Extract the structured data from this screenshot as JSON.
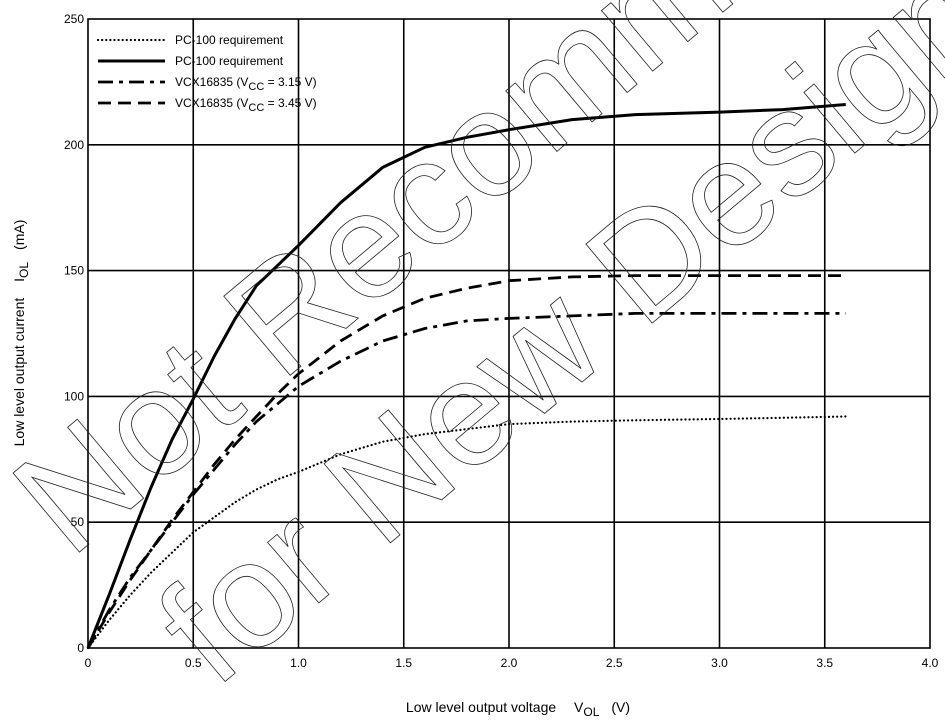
{
  "chart_data": {
    "type": "line",
    "xlim": [
      0,
      4.0
    ],
    "ylim": [
      0,
      250
    ],
    "x_ticks": [
      "0",
      "0.5",
      "1.0",
      "1.5",
      "2.0",
      "2.5",
      "3.0",
      "3.5",
      "4.0"
    ],
    "y_ticks": [
      "0",
      "50",
      "100",
      "150",
      "200",
      "250"
    ],
    "grid": true,
    "legend_position": "top-left",
    "xlabel": {
      "main": "Low level output voltage",
      "symbol": "V",
      "subscript": "OL",
      "unit": "(V)"
    },
    "ylabel": {
      "main": "Low level output current",
      "symbol": "I",
      "subscript": "OL",
      "unit": "(mA)"
    },
    "series": [
      {
        "legend": {
          "pre": "PC-100 requirement",
          "sub": "",
          "post": ""
        },
        "style": "dotted",
        "x": [
          0,
          0.1,
          0.2,
          0.3,
          0.4,
          0.5,
          0.6,
          0.7,
          0.8,
          0.9,
          1.0,
          1.2,
          1.4,
          1.6,
          1.8,
          2.0,
          2.3,
          2.6,
          3.0,
          3.3,
          3.6
        ],
        "y": [
          0,
          11,
          21,
          30,
          38,
          46,
          52,
          58,
          63,
          67,
          70,
          77,
          82,
          85,
          87,
          89,
          90,
          90.5,
          91,
          91.5,
          92
        ]
      },
      {
        "legend": {
          "pre": "PC-100 requirement",
          "sub": "",
          "post": ""
        },
        "style": "solid",
        "x": [
          0,
          0.1,
          0.2,
          0.3,
          0.4,
          0.5,
          0.6,
          0.7,
          0.8,
          0.9,
          1.0,
          1.2,
          1.4,
          1.6,
          1.8,
          2.0,
          2.3,
          2.6,
          3.0,
          3.3,
          3.6
        ],
        "y": [
          0,
          21,
          43,
          64,
          83,
          99,
          116,
          131,
          144,
          152,
          160,
          177,
          191,
          199,
          203,
          206,
          210,
          212,
          213,
          214,
          216
        ]
      },
      {
        "legend": {
          "pre": "VCX16835 (V",
          "sub": "CC",
          "post": " = 3.15 V)"
        },
        "style": "dashdot",
        "x": [
          0,
          0.1,
          0.2,
          0.3,
          0.4,
          0.5,
          0.6,
          0.7,
          0.8,
          0.9,
          1.0,
          1.2,
          1.4,
          1.6,
          1.8,
          2.0,
          2.3,
          2.6,
          3.0,
          3.3,
          3.6
        ],
        "y": [
          0,
          15,
          28,
          39,
          50,
          61,
          71,
          81,
          90,
          97,
          104,
          114,
          122,
          127,
          130,
          131,
          132,
          133,
          133,
          133,
          133
        ]
      },
      {
        "legend": {
          "pre": "VCX16835 (V",
          "sub": "CC",
          "post": " = 3.45 V)"
        },
        "style": "dashed",
        "x": [
          0,
          0.1,
          0.2,
          0.3,
          0.4,
          0.5,
          0.6,
          0.7,
          0.8,
          0.9,
          1.0,
          1.2,
          1.4,
          1.6,
          1.8,
          2.0,
          2.3,
          2.6,
          3.0,
          3.3,
          3.6
        ],
        "y": [
          0,
          14,
          27,
          39,
          51,
          62,
          73,
          83,
          92,
          101,
          109,
          122,
          132,
          139,
          143,
          146,
          147.5,
          148,
          148,
          148,
          148
        ]
      }
    ]
  },
  "watermark": [
    "Not Recommended",
    "for New Design"
  ]
}
